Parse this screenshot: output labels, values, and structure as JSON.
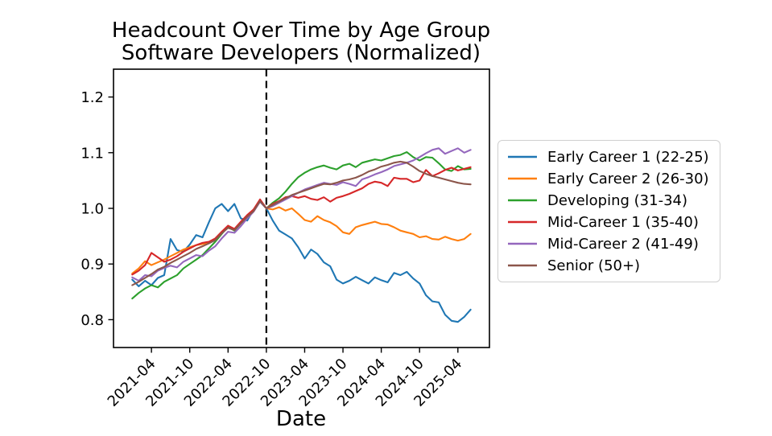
{
  "title": {
    "line1": "Headcount Over Time by Age Group",
    "line2": "Software Developers (Normalized)"
  },
  "chart_data": {
    "type": "line",
    "title": "Headcount Over Time by Age Group — Software Developers (Normalized)",
    "xlabel": "Date",
    "ylabel": "",
    "grid": false,
    "legend_position": "center right",
    "ylim": [
      0.75,
      1.25
    ],
    "yticks": [
      0.8,
      0.9,
      1.0,
      1.1,
      1.2
    ],
    "xticks": [
      "2021-04",
      "2021-10",
      "2022-04",
      "2022-10",
      "2023-04",
      "2023-10",
      "2024-04",
      "2024-10",
      "2025-04"
    ],
    "vline": {
      "x": "2022-10",
      "style": "dashed",
      "color": "#000000"
    },
    "x": [
      "2021-01",
      "2021-02",
      "2021-03",
      "2021-04",
      "2021-05",
      "2021-06",
      "2021-07",
      "2021-08",
      "2021-09",
      "2021-10",
      "2021-11",
      "2021-12",
      "2022-01",
      "2022-02",
      "2022-03",
      "2022-04",
      "2022-05",
      "2022-06",
      "2022-07",
      "2022-08",
      "2022-09",
      "2022-10",
      "2022-11",
      "2022-12",
      "2023-01",
      "2023-02",
      "2023-03",
      "2023-04",
      "2023-05",
      "2023-06",
      "2023-07",
      "2023-08",
      "2023-09",
      "2023-10",
      "2023-11",
      "2023-12",
      "2024-01",
      "2024-02",
      "2024-03",
      "2024-04",
      "2024-05",
      "2024-06",
      "2024-07",
      "2024-08",
      "2024-09",
      "2024-10",
      "2024-11",
      "2024-12",
      "2025-01",
      "2025-02",
      "2025-03",
      "2025-04",
      "2025-05",
      "2025-06"
    ],
    "series": [
      {
        "name": "Early Career 1 (22-25)",
        "color": "#1f77b4",
        "values": [
          0.872,
          0.86,
          0.87,
          0.862,
          0.875,
          0.88,
          0.945,
          0.925,
          0.922,
          0.935,
          0.952,
          0.948,
          0.975,
          1.0,
          1.008,
          0.995,
          1.008,
          0.982,
          0.978,
          0.998,
          1.012,
          1.0,
          0.978,
          0.96,
          0.953,
          0.946,
          0.93,
          0.91,
          0.926,
          0.918,
          0.903,
          0.896,
          0.872,
          0.865,
          0.87,
          0.877,
          0.871,
          0.865,
          0.876,
          0.871,
          0.867,
          0.884,
          0.88,
          0.886,
          0.874,
          0.865,
          0.844,
          0.833,
          0.831,
          0.809,
          0.798,
          0.796,
          0.805,
          0.818
        ]
      },
      {
        "name": "Early Career 2 (26-30)",
        "color": "#ff7f0e",
        "values": [
          0.883,
          0.892,
          0.905,
          0.898,
          0.903,
          0.908,
          0.914,
          0.92,
          0.926,
          0.93,
          0.934,
          0.936,
          0.938,
          0.944,
          0.956,
          0.967,
          0.962,
          0.975,
          0.987,
          0.997,
          1.014,
          1.0,
          0.998,
          1.002,
          0.996,
          1.0,
          0.99,
          0.979,
          0.976,
          0.986,
          0.979,
          0.975,
          0.968,
          0.957,
          0.954,
          0.966,
          0.97,
          0.973,
          0.976,
          0.972,
          0.971,
          0.966,
          0.96,
          0.957,
          0.954,
          0.948,
          0.95,
          0.945,
          0.944,
          0.949,
          0.945,
          0.942,
          0.945,
          0.954
        ]
      },
      {
        "name": "Developing (31-34)",
        "color": "#2ca02c",
        "values": [
          0.838,
          0.848,
          0.856,
          0.862,
          0.858,
          0.868,
          0.874,
          0.88,
          0.892,
          0.9,
          0.908,
          0.916,
          0.928,
          0.94,
          0.954,
          0.967,
          0.96,
          0.973,
          0.986,
          0.996,
          1.013,
          1.0,
          1.01,
          1.018,
          1.03,
          1.044,
          1.056,
          1.064,
          1.07,
          1.074,
          1.077,
          1.073,
          1.07,
          1.077,
          1.08,
          1.074,
          1.082,
          1.085,
          1.088,
          1.086,
          1.09,
          1.094,
          1.096,
          1.101,
          1.092,
          1.086,
          1.092,
          1.091,
          1.081,
          1.07,
          1.067,
          1.076,
          1.07,
          1.071
        ]
      },
      {
        "name": "Mid-Career 1 (35-40)",
        "color": "#d62728",
        "values": [
          0.881,
          0.888,
          0.898,
          0.92,
          0.912,
          0.904,
          0.908,
          0.914,
          0.922,
          0.928,
          0.934,
          0.938,
          0.94,
          0.946,
          0.958,
          0.969,
          0.963,
          0.976,
          0.988,
          0.998,
          1.016,
          1.0,
          1.008,
          1.013,
          1.02,
          1.022,
          1.019,
          1.022,
          1.017,
          1.015,
          1.02,
          1.012,
          1.019,
          1.022,
          1.026,
          1.031,
          1.036,
          1.044,
          1.048,
          1.046,
          1.04,
          1.055,
          1.053,
          1.053,
          1.047,
          1.05,
          1.069,
          1.058,
          1.063,
          1.069,
          1.073,
          1.068,
          1.071,
          1.074
        ]
      },
      {
        "name": "Mid-Career 2 (41-49)",
        "color": "#9467bd",
        "values": [
          0.876,
          0.87,
          0.88,
          0.878,
          0.888,
          0.893,
          0.897,
          0.894,
          0.904,
          0.91,
          0.916,
          0.914,
          0.924,
          0.932,
          0.946,
          0.958,
          0.956,
          0.968,
          0.982,
          0.994,
          1.012,
          1.0,
          1.004,
          1.01,
          1.016,
          1.022,
          1.028,
          1.034,
          1.038,
          1.042,
          1.046,
          1.044,
          1.042,
          1.047,
          1.044,
          1.04,
          1.052,
          1.056,
          1.061,
          1.065,
          1.07,
          1.076,
          1.079,
          1.082,
          1.086,
          1.092,
          1.099,
          1.105,
          1.108,
          1.098,
          1.103,
          1.108,
          1.1,
          1.105
        ]
      },
      {
        "name": "Senior (50+)",
        "color": "#8c564b",
        "values": [
          0.862,
          0.868,
          0.875,
          0.882,
          0.89,
          0.895,
          0.902,
          0.908,
          0.914,
          0.92,
          0.927,
          0.932,
          0.937,
          0.943,
          0.955,
          0.965,
          0.961,
          0.973,
          0.985,
          0.995,
          1.013,
          1.0,
          1.006,
          1.012,
          1.018,
          1.024,
          1.028,
          1.032,
          1.036,
          1.04,
          1.044,
          1.043,
          1.046,
          1.05,
          1.052,
          1.055,
          1.06,
          1.066,
          1.07,
          1.075,
          1.078,
          1.082,
          1.084,
          1.082,
          1.075,
          1.067,
          1.062,
          1.058,
          1.055,
          1.052,
          1.049,
          1.046,
          1.044,
          1.043
        ]
      }
    ]
  }
}
